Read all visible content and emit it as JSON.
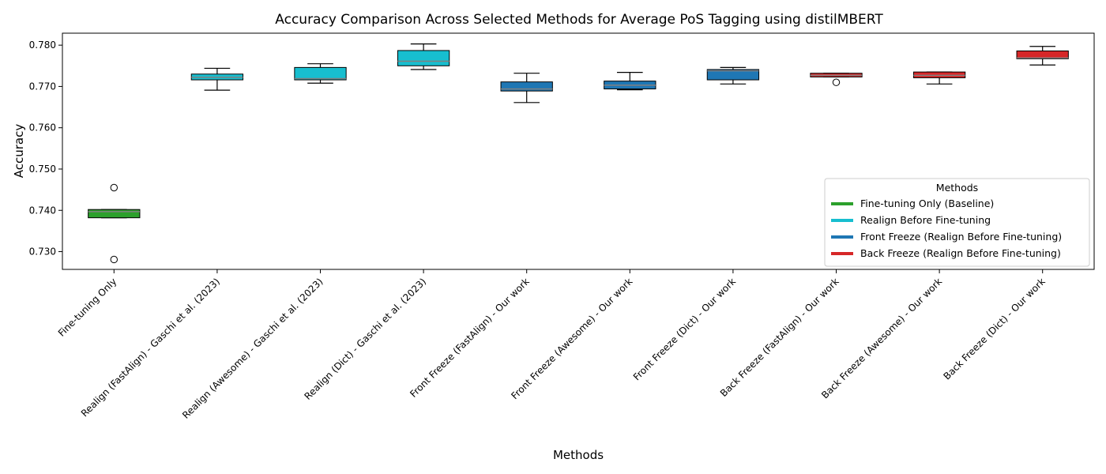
{
  "chart_data": {
    "type": "box",
    "title": "Accuracy Comparison Across Selected Methods for Average PoS Tagging using distilMBERT",
    "xlabel": "Methods",
    "ylabel": "Accuracy",
    "ylim": [
      0.7257,
      0.7829
    ],
    "yticks": [
      "0.730",
      "0.740",
      "0.750",
      "0.760",
      "0.770",
      "0.780"
    ],
    "ytick_values": [
      0.73,
      0.74,
      0.75,
      0.76,
      0.77,
      0.78
    ],
    "grid": false,
    "legend": {
      "title": "Methods",
      "placement": "lower-right",
      "entries": [
        {
          "label": "Fine-tuning Only (Baseline)",
          "color": "#2ca02c"
        },
        {
          "label": "Realign Before Fine-tuning",
          "color": "#17becf"
        },
        {
          "label": "Front Freeze (Realign Before Fine-tuning)",
          "color": "#1f77b4"
        },
        {
          "label": "Back Freeze (Realign Before Fine-tuning)",
          "color": "#d62728"
        }
      ]
    },
    "boxes": [
      {
        "category": "Fine-tuning Only",
        "group": 0,
        "whislo": 0.7382,
        "q1": 0.7382,
        "median": 0.7397,
        "q3": 0.7402,
        "whishi": 0.7402,
        "fliers": [
          0.7455,
          0.7281
        ]
      },
      {
        "category": "Realign (FastAlign) - Gaschi et al. (2023)",
        "group": 1,
        "whislo": 0.7691,
        "q1": 0.7716,
        "median": 0.7722,
        "q3": 0.773,
        "whishi": 0.7744,
        "fliers": []
      },
      {
        "category": "Realign (Awesome) - Gaschi et al. (2023)",
        "group": 1,
        "whislo": 0.7708,
        "q1": 0.7716,
        "median": 0.7719,
        "q3": 0.7746,
        "whishi": 0.7755,
        "fliers": []
      },
      {
        "category": "Realign (Dict) - Gaschi et al. (2023)",
        "group": 1,
        "whislo": 0.7741,
        "q1": 0.775,
        "median": 0.7761,
        "q3": 0.7787,
        "whishi": 0.7803,
        "fliers": []
      },
      {
        "category": "Front Freeze (FastAlign) - Our work",
        "group": 2,
        "whislo": 0.7661,
        "q1": 0.7689,
        "median": 0.7694,
        "q3": 0.7711,
        "whishi": 0.7732,
        "fliers": []
      },
      {
        "category": "Front Freeze (Awesome) - Our work",
        "group": 2,
        "whislo": 0.7692,
        "q1": 0.7694,
        "median": 0.7703,
        "q3": 0.7713,
        "whishi": 0.7734,
        "fliers": []
      },
      {
        "category": "Front Freeze (Dict) - Our work",
        "group": 2,
        "whislo": 0.7706,
        "q1": 0.7716,
        "median": 0.7738,
        "q3": 0.7741,
        "whishi": 0.7746,
        "fliers": []
      },
      {
        "category": "Back Freeze (FastAlign) - Our work",
        "group": 3,
        "whislo": 0.7723,
        "q1": 0.7723,
        "median": 0.7727,
        "q3": 0.7732,
        "whishi": 0.7732,
        "fliers": [
          0.771
        ]
      },
      {
        "category": "Back Freeze (Awesome) - Our work",
        "group": 3,
        "whislo": 0.7706,
        "q1": 0.7721,
        "median": 0.7727,
        "q3": 0.7735,
        "whishi": 0.7735,
        "fliers": []
      },
      {
        "category": "Back Freeze (Dict) - Our work",
        "group": 3,
        "whislo": 0.7752,
        "q1": 0.7767,
        "median": 0.7769,
        "q3": 0.7786,
        "whishi": 0.7797,
        "fliers": []
      }
    ]
  }
}
